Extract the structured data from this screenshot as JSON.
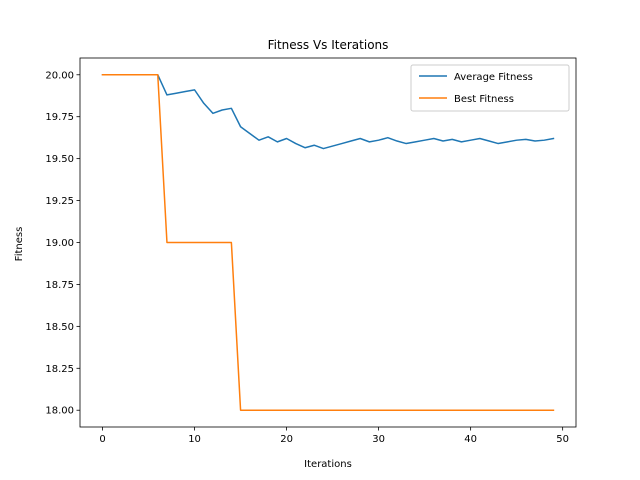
{
  "chart_data": {
    "type": "line",
    "title": "Fitness Vs Iterations",
    "xlabel": "Iterations",
    "ylabel": "Fitness",
    "xlim": [
      -2.45,
      51.45
    ],
    "ylim": [
      17.9,
      20.1
    ],
    "xticks": [
      0,
      10,
      20,
      30,
      40,
      50
    ],
    "yticks": [
      18.0,
      18.25,
      18.5,
      18.75,
      19.0,
      19.25,
      19.5,
      19.75,
      20.0
    ],
    "ytick_labels": [
      "18.00",
      "18.25",
      "18.50",
      "18.75",
      "19.00",
      "19.25",
      "19.50",
      "19.75",
      "20.00"
    ],
    "xtick_labels": [
      "0",
      "10",
      "20",
      "30",
      "40",
      "50"
    ],
    "legend_position": "upper-right",
    "grid": false,
    "x": [
      0,
      1,
      2,
      3,
      4,
      5,
      6,
      7,
      8,
      9,
      10,
      11,
      12,
      13,
      14,
      15,
      16,
      17,
      18,
      19,
      20,
      21,
      22,
      23,
      24,
      25,
      26,
      27,
      28,
      29,
      30,
      31,
      32,
      33,
      34,
      35,
      36,
      37,
      38,
      39,
      40,
      41,
      42,
      43,
      44,
      45,
      46,
      47,
      48,
      49
    ],
    "series": [
      {
        "name": "Average Fitness",
        "color": "#1f77b4",
        "values": [
          20.0,
          20.0,
          20.0,
          20.0,
          20.0,
          20.0,
          20.0,
          19.88,
          19.89,
          19.9,
          19.91,
          19.83,
          19.77,
          19.79,
          19.8,
          19.69,
          19.65,
          19.61,
          19.63,
          19.6,
          19.62,
          19.59,
          19.565,
          19.58,
          19.56,
          19.575,
          19.59,
          19.605,
          19.62,
          19.6,
          19.61,
          19.625,
          19.605,
          19.59,
          19.6,
          19.61,
          19.62,
          19.605,
          19.615,
          19.6,
          19.61,
          19.62,
          19.605,
          19.59,
          19.6,
          19.61,
          19.615,
          19.605,
          19.61,
          19.62
        ]
      },
      {
        "name": "Best Fitness",
        "color": "#ff7f0e",
        "values": [
          20.0,
          20.0,
          20.0,
          20.0,
          20.0,
          20.0,
          20.0,
          19.0,
          19.0,
          19.0,
          19.0,
          19.0,
          19.0,
          19.0,
          19.0,
          18.0,
          18.0,
          18.0,
          18.0,
          18.0,
          18.0,
          18.0,
          18.0,
          18.0,
          18.0,
          18.0,
          18.0,
          18.0,
          18.0,
          18.0,
          18.0,
          18.0,
          18.0,
          18.0,
          18.0,
          18.0,
          18.0,
          18.0,
          18.0,
          18.0,
          18.0,
          18.0,
          18.0,
          18.0,
          18.0,
          18.0,
          18.0,
          18.0,
          18.0,
          18.0
        ]
      }
    ]
  }
}
